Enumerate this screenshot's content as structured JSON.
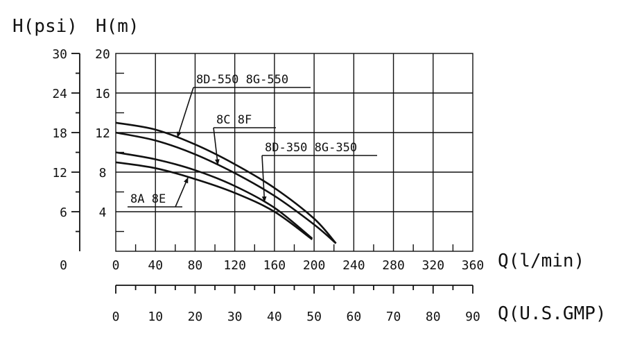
{
  "chart_data": {
    "type": "line",
    "y_left_title": "H(psi)",
    "y_right_title": "H(m)",
    "x_title_lpm": "Q(l/min)",
    "x_title_gpm": "Q(U.S.GMP)",
    "ylim_m": [
      0,
      20
    ],
    "ylim_psi": [
      0,
      30
    ],
    "xlim_lpm": [
      0,
      360
    ],
    "xlim_gpm": [
      0,
      90
    ],
    "grid": true,
    "m_ticks": [
      "4",
      "8",
      "12",
      "16",
      "20"
    ],
    "psi_ticks": [
      "0",
      "6",
      "12",
      "18",
      "24",
      "30"
    ],
    "lpm_ticks": [
      "0",
      "40",
      "80",
      "120",
      "160",
      "200",
      "240",
      "280",
      "320",
      "360"
    ],
    "gpm_ticks": [
      "0",
      "10",
      "20",
      "30",
      "40",
      "50",
      "60",
      "70",
      "80",
      "90"
    ],
    "series": [
      {
        "name": "8D-550 8G-550",
        "x": [
          0,
          40,
          80,
          120,
          160,
          200,
          222
        ],
        "y": [
          13.0,
          12.3,
          10.8,
          8.8,
          6.4,
          3.3,
          0.8
        ]
      },
      {
        "name": "8C 8F",
        "x": [
          0,
          40,
          80,
          120,
          160,
          200,
          222
        ],
        "y": [
          12.0,
          11.2,
          9.8,
          7.9,
          5.6,
          2.7,
          0.8
        ]
      },
      {
        "name": "8D-350 8G-350",
        "x": [
          0,
          40,
          80,
          120,
          160,
          198
        ],
        "y": [
          10.0,
          9.3,
          8.2,
          6.6,
          4.4,
          1.3
        ]
      },
      {
        "name": "8A 8E",
        "x": [
          0,
          40,
          80,
          120,
          160,
          198
        ],
        "y": [
          9.0,
          8.4,
          7.3,
          5.9,
          4.0,
          1.2
        ]
      }
    ]
  }
}
